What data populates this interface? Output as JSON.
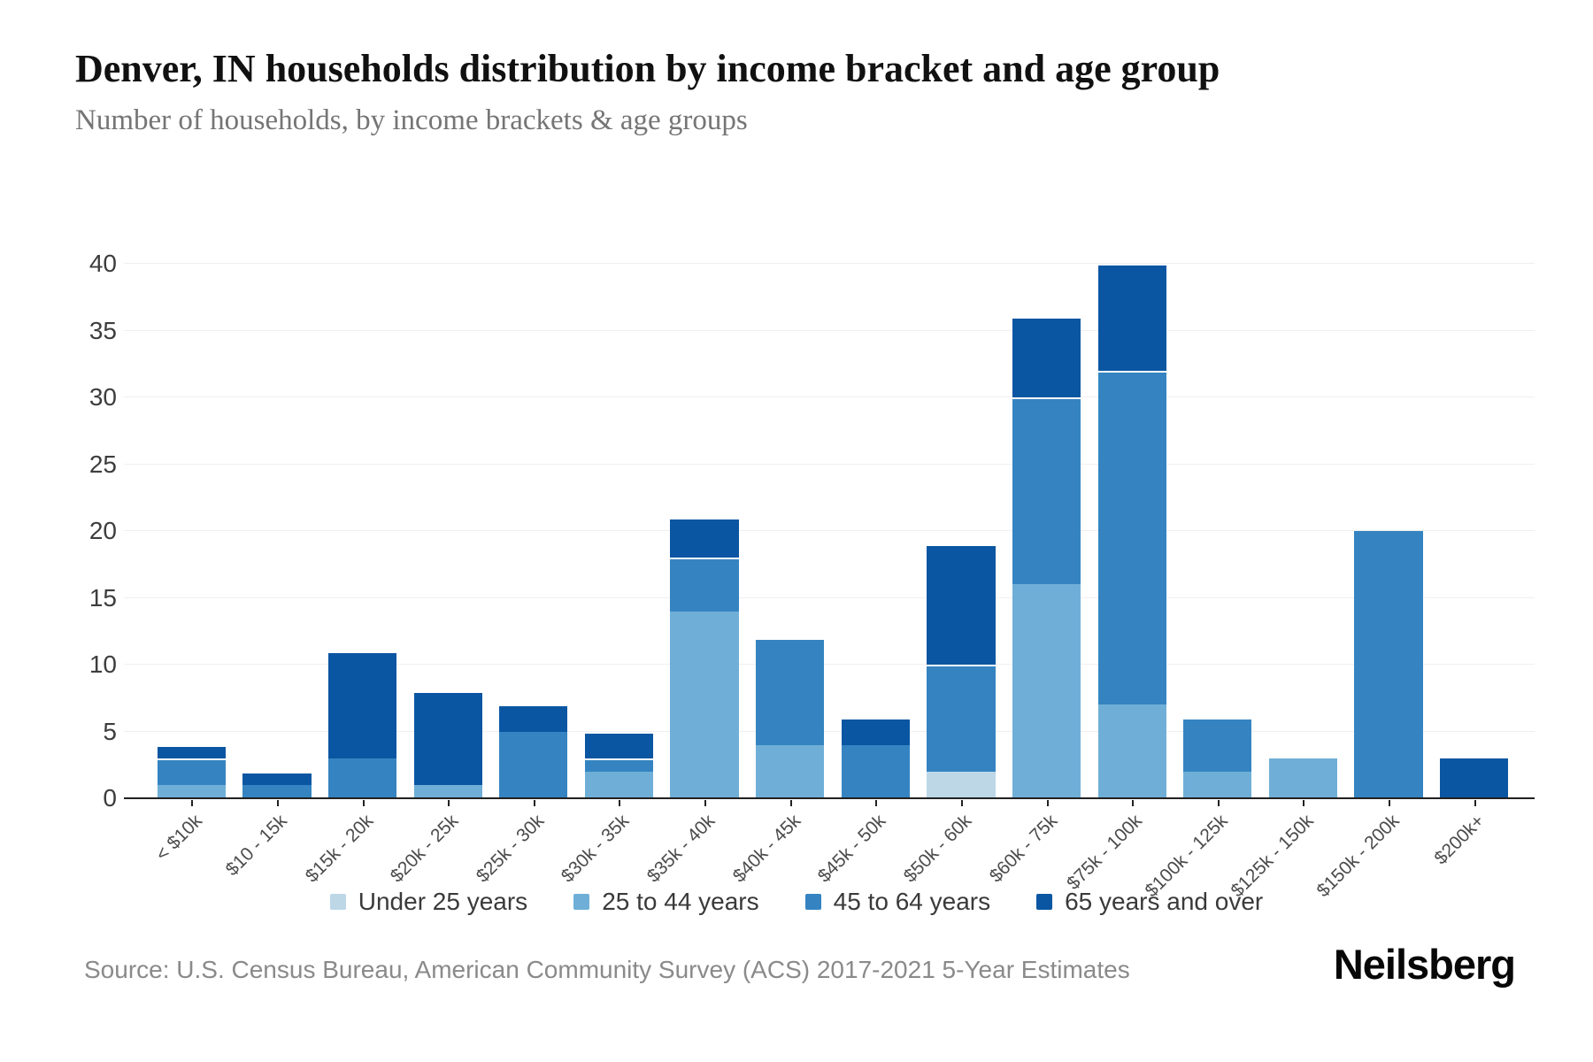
{
  "header": {
    "title": "Denver, IN households distribution by income bracket and age group",
    "subtitle": "Number of households, by income brackets & age groups"
  },
  "chart_data": {
    "type": "bar",
    "stacked": true,
    "title": "Denver, IN households distribution by income bracket and age group",
    "xlabel": "",
    "ylabel": "",
    "ylim": [
      0,
      40
    ],
    "yticks": [
      0,
      5,
      10,
      15,
      20,
      25,
      30,
      35,
      40
    ],
    "grid": true,
    "legend_position": "bottom",
    "categories": [
      "< $10k",
      "$10 - 15k",
      "$15k - 20k",
      "$20k - 25k",
      "$25k - 30k",
      "$30k - 35k",
      "$35k - 40k",
      "$40k - 45k",
      "$45k - 50k",
      "$50k - 60k",
      "$60k - 75k",
      "$75k - 100k",
      "$100k - 125k",
      "$125k - 150k",
      "$150k - 200k",
      "$200k+"
    ],
    "series": [
      {
        "name": "Under 25 years",
        "color": "#bdd7e7",
        "values": [
          0,
          0,
          0,
          0,
          0,
          0,
          0,
          0,
          0,
          2,
          0,
          0,
          0,
          0,
          0,
          0
        ]
      },
      {
        "name": "25 to 44 years",
        "color": "#6fafd7",
        "values": [
          1,
          0,
          0,
          1,
          0,
          2,
          14,
          4,
          0,
          0,
          16,
          7,
          2,
          3,
          0,
          0
        ]
      },
      {
        "name": "45 to 64 years",
        "color": "#3584c1",
        "values": [
          2,
          1,
          3,
          0,
          5,
          1,
          4,
          8,
          4,
          8,
          14,
          25,
          4,
          0,
          20,
          0
        ]
      },
      {
        "name": "65 years and over",
        "color": "#0b56a2",
        "values": [
          1,
          1,
          8,
          7,
          2,
          2,
          3,
          0,
          2,
          9,
          6,
          8,
          0,
          0,
          0,
          3
        ]
      }
    ],
    "bar_totals": [
      4,
      2,
      11,
      8,
      7,
      5,
      21,
      12,
      6,
      19,
      36,
      40,
      6,
      3,
      20,
      3
    ]
  },
  "footer": {
    "source": "Source: U.S. Census Bureau, American Community Survey (ACS) 2017-2021 5-Year Estimates",
    "brand": "Neilsberg"
  }
}
